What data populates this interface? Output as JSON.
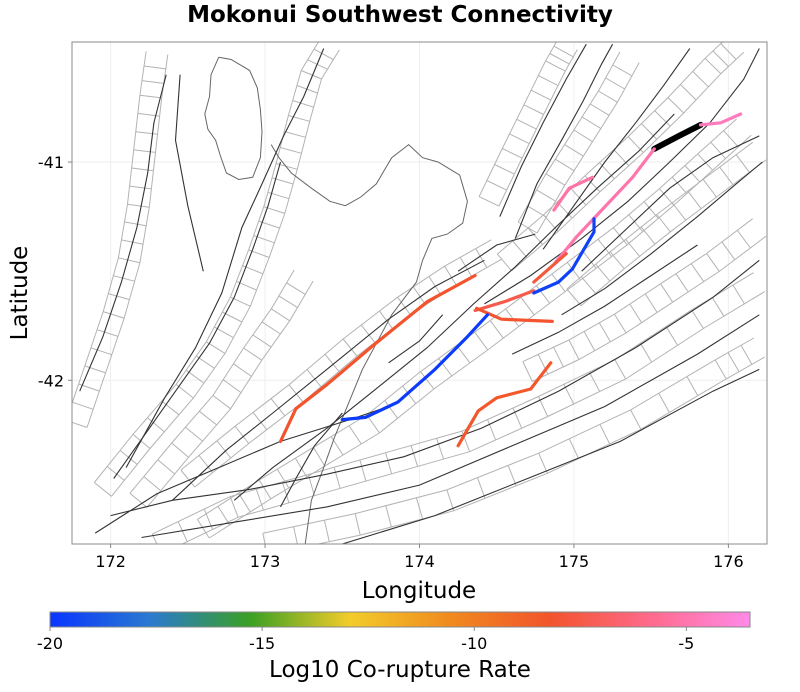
{
  "title": "Mokonui Southwest Connectivity",
  "map": {
    "xlabel": "Longitude",
    "ylabel": "Latitude",
    "lon_range": [
      171.75,
      176.25
    ],
    "lat_range": [
      -42.75,
      -40.45
    ],
    "x_ticks": [
      {
        "value": 172,
        "label": "172"
      },
      {
        "value": 173,
        "label": "173"
      },
      {
        "value": 174,
        "label": "174"
      },
      {
        "value": 175,
        "label": "175"
      },
      {
        "value": 176,
        "label": "176"
      }
    ],
    "y_ticks": [
      {
        "value": -41,
        "label": "-41"
      },
      {
        "value": -42,
        "label": "-42"
      }
    ],
    "grid": true
  },
  "colorbar": {
    "label": "Log10 Co-rupture Rate",
    "range": [
      -20,
      -3.5
    ],
    "ticks": [
      {
        "value": -20,
        "label": "-20"
      },
      {
        "value": -15,
        "label": "-15"
      },
      {
        "value": -10,
        "label": "-10"
      },
      {
        "value": -5,
        "label": "-5"
      }
    ],
    "colors": [
      "#0a35ff",
      "#2a7ad0",
      "#3aa023",
      "#f3cc2a",
      "#f08a1e",
      "#f2542c",
      "#ff6a8c",
      "#ff8ae8"
    ]
  },
  "colors": {
    "background_fault": "#333333",
    "fault_outline": "#b3b3b3",
    "coastline": "#666666",
    "source_rupture": "#000000"
  },
  "ruptures": [
    {
      "name": "source",
      "log10_rate": null,
      "path": [
        [
          175.52,
          -40.94
        ],
        [
          175.68,
          -40.88
        ],
        [
          175.82,
          -40.83
        ]
      ]
    },
    {
      "name": "r1",
      "log10_rate": -4.6,
      "path": [
        [
          175.82,
          -40.83
        ],
        [
          175.95,
          -40.82
        ],
        [
          176.08,
          -40.78
        ]
      ]
    },
    {
      "name": "r2",
      "log10_rate": -5.0,
      "path": [
        [
          175.52,
          -40.94
        ],
        [
          175.38,
          -41.07
        ],
        [
          175.18,
          -41.22
        ],
        [
          175.02,
          -41.34
        ],
        [
          174.88,
          -41.46
        ]
      ]
    },
    {
      "name": "r3",
      "log10_rate": -5.2,
      "path": [
        [
          174.87,
          -41.22
        ],
        [
          174.97,
          -41.12
        ],
        [
          175.12,
          -41.07
        ]
      ]
    },
    {
      "name": "r4",
      "log10_rate": -7.4,
      "path": [
        [
          174.74,
          -41.59
        ],
        [
          174.55,
          -41.64
        ],
        [
          174.36,
          -41.68
        ]
      ]
    },
    {
      "name": "r5",
      "log10_rate": -7.8,
      "path": [
        [
          174.95,
          -41.42
        ],
        [
          174.74,
          -41.55
        ]
      ]
    },
    {
      "name": "r6",
      "log10_rate": -8.1,
      "path": [
        [
          174.37,
          -41.67
        ],
        [
          174.53,
          -41.72
        ],
        [
          174.86,
          -41.73
        ]
      ]
    },
    {
      "name": "r7",
      "log10_rate": -8.2,
      "path": [
        [
          174.36,
          -41.52
        ],
        [
          174.05,
          -41.64
        ],
        [
          173.7,
          -41.84
        ],
        [
          173.4,
          -42.02
        ],
        [
          173.2,
          -42.13
        ],
        [
          173.1,
          -42.28
        ]
      ]
    },
    {
      "name": "r8",
      "log10_rate": -8.4,
      "path": [
        [
          174.85,
          -41.92
        ],
        [
          174.72,
          -42.04
        ],
        [
          174.5,
          -42.08
        ],
        [
          174.38,
          -42.14
        ],
        [
          174.25,
          -42.3
        ]
      ]
    },
    {
      "name": "r9",
      "log10_rate": -19.6,
      "path": [
        [
          175.13,
          -41.26
        ],
        [
          175.13,
          -41.32
        ],
        [
          174.99,
          -41.49
        ],
        [
          174.9,
          -41.55
        ],
        [
          174.74,
          -41.6
        ]
      ]
    },
    {
      "name": "r10",
      "log10_rate": -19.8,
      "path": [
        [
          174.44,
          -41.7
        ],
        [
          174.31,
          -41.8
        ],
        [
          174.1,
          -41.95
        ],
        [
          173.94,
          -42.05
        ],
        [
          173.86,
          -42.1
        ],
        [
          173.65,
          -42.17
        ],
        [
          173.5,
          -42.18
        ]
      ]
    }
  ],
  "coastline": [
    [
      [
        172.7,
        -40.52
      ],
      [
        172.78,
        -40.53
      ],
      [
        172.9,
        -40.58
      ],
      [
        172.95,
        -40.66
      ],
      [
        172.97,
        -40.76
      ],
      [
        172.98,
        -40.86
      ],
      [
        172.97,
        -40.98
      ],
      [
        172.92,
        -41.07
      ],
      [
        172.83,
        -41.08
      ],
      [
        172.75,
        -41.05
      ],
      [
        172.71,
        -40.97
      ],
      [
        172.68,
        -40.9
      ],
      [
        172.63,
        -40.85
      ],
      [
        172.61,
        -40.78
      ],
      [
        172.64,
        -40.7
      ],
      [
        172.65,
        -40.6
      ],
      [
        172.7,
        -40.52
      ]
    ],
    [
      [
        173.04,
        -40.92
      ],
      [
        173.09,
        -40.98
      ],
      [
        173.17,
        -41.05
      ],
      [
        173.3,
        -41.12
      ],
      [
        173.42,
        -41.18
      ],
      [
        173.52,
        -41.2
      ],
      [
        173.62,
        -41.16
      ],
      [
        173.72,
        -41.1
      ],
      [
        173.82,
        -40.98
      ],
      [
        173.93,
        -40.92
      ],
      [
        174.02,
        -40.98
      ],
      [
        174.12,
        -41.0
      ],
      [
        174.26,
        -41.06
      ],
      [
        174.31,
        -41.18
      ],
      [
        174.28,
        -41.28
      ],
      [
        174.18,
        -41.33
      ],
      [
        174.08,
        -41.35
      ],
      [
        174.02,
        -41.45
      ],
      [
        173.98,
        -41.55
      ],
      [
        173.82,
        -41.7
      ],
      [
        173.63,
        -41.95
      ],
      [
        173.52,
        -42.14
      ],
      [
        173.45,
        -42.26
      ],
      [
        173.38,
        -42.4
      ],
      [
        173.3,
        -42.55
      ],
      [
        173.26,
        -42.75
      ]
    ]
  ],
  "background_faults": [
    [
      [
        171.8,
        -42.05
      ],
      [
        171.95,
        -41.8
      ],
      [
        172.07,
        -41.55
      ],
      [
        172.17,
        -41.3
      ],
      [
        172.24,
        -41.05
      ],
      [
        172.28,
        -40.82
      ],
      [
        172.36,
        -40.6
      ]
    ],
    [
      [
        172.02,
        -42.45
      ],
      [
        172.22,
        -42.25
      ],
      [
        172.45,
        -42.02
      ],
      [
        172.64,
        -41.83
      ],
      [
        172.8,
        -41.62
      ],
      [
        172.92,
        -41.4
      ],
      [
        173.02,
        -41.2
      ],
      [
        173.1,
        -41.0
      ]
    ],
    [
      [
        172.1,
        -42.4
      ],
      [
        172.35,
        -42.08
      ],
      [
        172.55,
        -41.85
      ],
      [
        172.72,
        -41.6
      ],
      [
        172.85,
        -41.3
      ],
      [
        172.98,
        -41.1
      ],
      [
        173.12,
        -40.88
      ],
      [
        173.25,
        -40.7
      ],
      [
        173.38,
        -40.48
      ]
    ],
    [
      [
        172.8,
        -42.55
      ],
      [
        173.05,
        -42.4
      ],
      [
        173.4,
        -42.22
      ],
      [
        173.7,
        -42.05
      ],
      [
        174.05,
        -41.85
      ],
      [
        174.35,
        -41.65
      ],
      [
        174.62,
        -41.48
      ],
      [
        174.88,
        -41.3
      ],
      [
        175.15,
        -41.12
      ],
      [
        175.42,
        -40.95
      ],
      [
        175.65,
        -40.78
      ]
    ],
    [
      [
        172.4,
        -42.55
      ],
      [
        172.75,
        -42.32
      ],
      [
        173.05,
        -42.15
      ],
      [
        173.4,
        -41.95
      ],
      [
        173.8,
        -41.72
      ],
      [
        174.1,
        -41.57
      ],
      [
        174.42,
        -41.45
      ]
    ],
    [
      [
        171.9,
        -42.7
      ],
      [
        172.3,
        -42.52
      ],
      [
        172.7,
        -42.4
      ],
      [
        173.1,
        -42.28
      ],
      [
        173.55,
        -42.18
      ],
      [
        173.8,
        -42.12
      ]
    ],
    [
      [
        172.0,
        -42.62
      ],
      [
        172.4,
        -42.55
      ],
      [
        172.9,
        -42.5
      ],
      [
        173.4,
        -42.43
      ],
      [
        173.9,
        -42.35
      ],
      [
        174.4,
        -42.22
      ],
      [
        174.9,
        -42.05
      ],
      [
        175.4,
        -41.85
      ],
      [
        175.9,
        -41.62
      ],
      [
        176.2,
        -41.45
      ]
    ],
    [
      [
        172.2,
        -42.72
      ],
      [
        172.8,
        -42.65
      ],
      [
        173.4,
        -42.58
      ],
      [
        174.0,
        -42.48
      ],
      [
        174.6,
        -42.3
      ],
      [
        175.2,
        -42.12
      ],
      [
        175.8,
        -41.88
      ],
      [
        176.2,
        -41.7
      ]
    ],
    [
      [
        173.5,
        -42.75
      ],
      [
        174.1,
        -42.62
      ],
      [
        174.7,
        -42.45
      ],
      [
        175.3,
        -42.28
      ],
      [
        175.9,
        -42.05
      ],
      [
        176.2,
        -41.95
      ]
    ],
    [
      [
        174.42,
        -41.65
      ],
      [
        174.72,
        -41.52
      ],
      [
        175.05,
        -41.35
      ],
      [
        175.35,
        -41.18
      ],
      [
        175.62,
        -41.0
      ],
      [
        175.88,
        -40.82
      ],
      [
        176.1,
        -40.62
      ],
      [
        176.2,
        -40.48
      ]
    ],
    [
      [
        174.8,
        -41.4
      ],
      [
        175.0,
        -41.2
      ],
      [
        175.2,
        -41.0
      ],
      [
        175.4,
        -40.82
      ],
      [
        175.58,
        -40.65
      ],
      [
        175.75,
        -40.48
      ]
    ],
    [
      [
        174.62,
        -41.35
      ],
      [
        174.76,
        -41.1
      ],
      [
        174.92,
        -40.9
      ],
      [
        175.06,
        -40.72
      ],
      [
        175.18,
        -40.55
      ],
      [
        175.25,
        -40.46
      ]
    ],
    [
      [
        174.52,
        -41.25
      ],
      [
        174.66,
        -41.02
      ],
      [
        174.8,
        -40.82
      ],
      [
        174.95,
        -40.62
      ],
      [
        175.08,
        -40.46
      ]
    ],
    [
      [
        174.92,
        -41.7
      ],
      [
        175.2,
        -41.58
      ],
      [
        175.5,
        -41.42
      ],
      [
        175.8,
        -41.25
      ],
      [
        176.05,
        -41.1
      ],
      [
        176.22,
        -41.0
      ]
    ],
    [
      [
        175.05,
        -41.5
      ],
      [
        175.35,
        -41.3
      ],
      [
        175.62,
        -41.12
      ],
      [
        175.9,
        -40.98
      ],
      [
        176.2,
        -40.88
      ]
    ],
    [
      [
        174.25,
        -41.5
      ],
      [
        174.5,
        -41.38
      ],
      [
        174.75,
        -41.33
      ]
    ],
    [
      [
        173.1,
        -42.58
      ],
      [
        173.2,
        -42.45
      ],
      [
        173.32,
        -42.3
      ],
      [
        173.5,
        -42.15
      ]
    ],
    [
      [
        173.8,
        -41.92
      ],
      [
        174.0,
        -41.82
      ],
      [
        174.15,
        -41.7
      ]
    ],
    [
      [
        174.6,
        -41.88
      ],
      [
        174.9,
        -41.78
      ],
      [
        175.2,
        -41.66
      ],
      [
        175.5,
        -41.52
      ],
      [
        175.8,
        -41.38
      ]
    ],
    [
      [
        172.6,
        -41.5
      ],
      [
        172.5,
        -41.2
      ],
      [
        172.42,
        -40.9
      ],
      [
        172.45,
        -40.6
      ]
    ]
  ],
  "fault_outlines": [
    [
      [
        171.95,
        -42.5
      ],
      [
        172.2,
        -42.28
      ],
      [
        172.48,
        -42.05
      ],
      [
        172.68,
        -41.85
      ],
      [
        172.84,
        -41.64
      ],
      [
        172.96,
        -41.42
      ],
      [
        173.06,
        -41.22
      ],
      [
        173.14,
        -41.02
      ],
      [
        173.22,
        -40.8
      ],
      [
        173.3,
        -40.6
      ],
      [
        173.42,
        -40.46
      ]
    ],
    [
      [
        171.78,
        -42.2
      ],
      [
        171.9,
        -41.95
      ],
      [
        172.02,
        -41.7
      ],
      [
        172.12,
        -41.45
      ],
      [
        172.18,
        -41.2
      ],
      [
        172.22,
        -40.95
      ],
      [
        172.26,
        -40.7
      ],
      [
        172.3,
        -40.5
      ]
    ],
    [
      [
        172.18,
        -42.55
      ],
      [
        172.45,
        -42.32
      ],
      [
        172.72,
        -42.1
      ],
      [
        172.92,
        -41.88
      ],
      [
        173.1,
        -41.7
      ],
      [
        173.25,
        -41.52
      ]
    ],
    [
      [
        172.6,
        -42.68
      ],
      [
        173.0,
        -42.5
      ],
      [
        173.35,
        -42.35
      ],
      [
        173.7,
        -42.2
      ],
      [
        174.05,
        -42.0
      ],
      [
        174.4,
        -41.82
      ],
      [
        174.7,
        -41.66
      ],
      [
        175.0,
        -41.5
      ],
      [
        175.3,
        -41.34
      ],
      [
        175.6,
        -41.16
      ],
      [
        175.85,
        -41.0
      ],
      [
        176.1,
        -40.84
      ]
    ],
    [
      [
        172.5,
        -42.45
      ],
      [
        172.85,
        -42.25
      ],
      [
        173.2,
        -42.06
      ],
      [
        173.55,
        -41.85
      ],
      [
        173.9,
        -41.66
      ],
      [
        174.2,
        -41.52
      ],
      [
        174.5,
        -41.4
      ]
    ],
    [
      [
        172.3,
        -42.75
      ],
      [
        172.8,
        -42.58
      ],
      [
        173.3,
        -42.48
      ],
      [
        173.8,
        -42.38
      ],
      [
        174.3,
        -42.28
      ],
      [
        174.8,
        -42.12
      ],
      [
        175.3,
        -41.95
      ],
      [
        175.8,
        -41.72
      ],
      [
        176.2,
        -41.55
      ]
    ],
    [
      [
        173.0,
        -42.75
      ],
      [
        173.6,
        -42.66
      ],
      [
        174.2,
        -42.55
      ],
      [
        174.8,
        -42.38
      ],
      [
        175.4,
        -42.18
      ],
      [
        175.95,
        -41.95
      ],
      [
        176.2,
        -41.85
      ]
    ],
    [
      [
        174.55,
        -41.46
      ],
      [
        174.85,
        -41.28
      ],
      [
        175.12,
        -41.1
      ],
      [
        175.4,
        -40.92
      ],
      [
        175.66,
        -40.74
      ],
      [
        175.9,
        -40.56
      ],
      [
        176.05,
        -40.46
      ]
    ],
    [
      [
        174.7,
        -41.3
      ],
      [
        174.88,
        -41.08
      ],
      [
        175.06,
        -40.88
      ],
      [
        175.22,
        -40.7
      ],
      [
        175.36,
        -40.52
      ]
    ],
    [
      [
        174.45,
        -41.18
      ],
      [
        174.6,
        -40.96
      ],
      [
        174.74,
        -40.76
      ],
      [
        174.88,
        -40.56
      ],
      [
        174.96,
        -40.46
      ]
    ],
    [
      [
        175.0,
        -41.62
      ],
      [
        175.28,
        -41.45
      ],
      [
        175.58,
        -41.28
      ],
      [
        175.88,
        -41.12
      ],
      [
        176.2,
        -40.95
      ]
    ],
    [
      [
        174.7,
        -41.96
      ],
      [
        175.0,
        -41.86
      ],
      [
        175.3,
        -41.74
      ],
      [
        175.6,
        -41.6
      ],
      [
        175.9,
        -41.46
      ],
      [
        176.2,
        -41.3
      ]
    ]
  ]
}
